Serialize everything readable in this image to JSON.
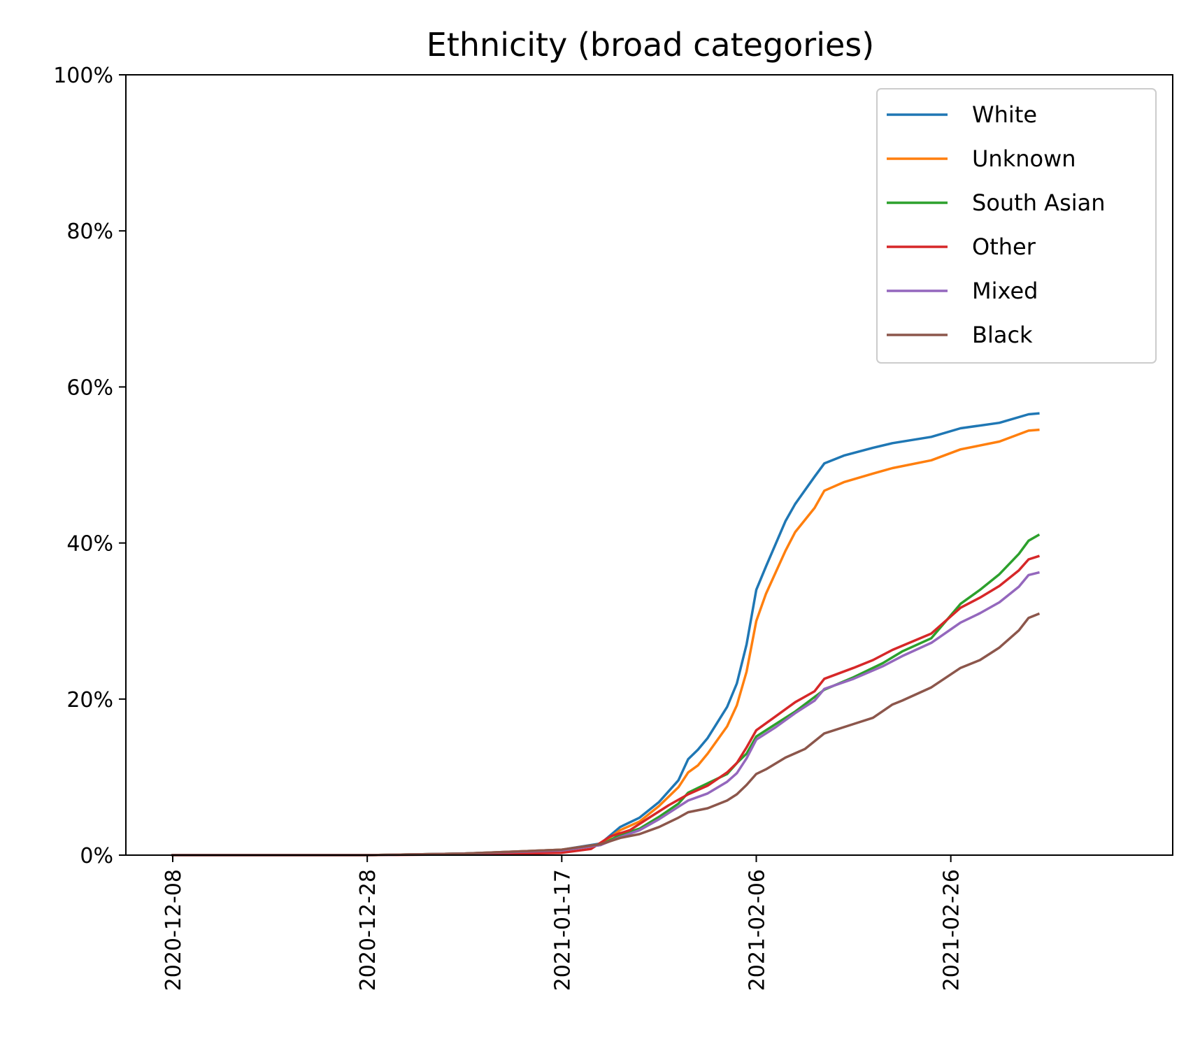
{
  "chart_data": {
    "type": "line",
    "title": "Ethnicity (broad categories)",
    "xlabel": "",
    "ylabel": "",
    "x_range": [
      "2020-12-08",
      "2021-03-16"
    ],
    "x_ticks": [
      "2020-12-08",
      "2020-12-28",
      "2021-01-17",
      "2021-02-06",
      "2021-02-26"
    ],
    "ylim": [
      0,
      100
    ],
    "y_ticks": [
      0,
      20,
      40,
      60,
      80,
      100
    ],
    "y_tick_labels": [
      "0%",
      "20%",
      "40%",
      "60%",
      "80%",
      "100%"
    ],
    "grid": false,
    "legend_position": "top-right",
    "series": [
      {
        "name": "White",
        "color": "#1f77b4",
        "points": [
          [
            "2020-12-08",
            0
          ],
          [
            "2020-12-28",
            0
          ],
          [
            "2021-01-07",
            0.2
          ],
          [
            "2021-01-17",
            0.7
          ],
          [
            "2021-01-21",
            1.5
          ],
          [
            "2021-01-23",
            3.6
          ],
          [
            "2021-01-25",
            4.8
          ],
          [
            "2021-01-27",
            6.8
          ],
          [
            "2021-01-29",
            9.6
          ],
          [
            "2021-01-30",
            12.3
          ],
          [
            "2021-01-31",
            13.5
          ],
          [
            "2021-02-01",
            15.0
          ],
          [
            "2021-02-03",
            19.0
          ],
          [
            "2021-02-04",
            22.0
          ],
          [
            "2021-02-05",
            27.0
          ],
          [
            "2021-02-06",
            34.0
          ],
          [
            "2021-02-07",
            37.0
          ],
          [
            "2021-02-09",
            42.8
          ],
          [
            "2021-02-10",
            45.0
          ],
          [
            "2021-02-12",
            48.5
          ],
          [
            "2021-02-13",
            50.2
          ],
          [
            "2021-02-15",
            51.2
          ],
          [
            "2021-02-18",
            52.2
          ],
          [
            "2021-02-20",
            52.8
          ],
          [
            "2021-02-24",
            53.6
          ],
          [
            "2021-02-27",
            54.7
          ],
          [
            "2021-03-03",
            55.4
          ],
          [
            "2021-03-06",
            56.5
          ],
          [
            "2021-03-07",
            56.6
          ]
        ]
      },
      {
        "name": "Unknown",
        "color": "#ff7f0e",
        "points": [
          [
            "2020-12-08",
            0
          ],
          [
            "2020-12-28",
            0
          ],
          [
            "2021-01-07",
            0.2
          ],
          [
            "2021-01-17",
            0.7
          ],
          [
            "2021-01-21",
            1.4
          ],
          [
            "2021-01-23",
            3.2
          ],
          [
            "2021-01-25",
            4.3
          ],
          [
            "2021-01-27",
            6.3
          ],
          [
            "2021-01-29",
            8.7
          ],
          [
            "2021-01-30",
            10.6
          ],
          [
            "2021-01-31",
            11.5
          ],
          [
            "2021-02-01",
            13.0
          ],
          [
            "2021-02-03",
            16.5
          ],
          [
            "2021-02-04",
            19.2
          ],
          [
            "2021-02-05",
            23.5
          ],
          [
            "2021-02-06",
            30.0
          ],
          [
            "2021-02-07",
            33.5
          ],
          [
            "2021-02-09",
            39.0
          ],
          [
            "2021-02-10",
            41.4
          ],
          [
            "2021-02-12",
            44.5
          ],
          [
            "2021-02-13",
            46.7
          ],
          [
            "2021-02-15",
            47.8
          ],
          [
            "2021-02-18",
            48.9
          ],
          [
            "2021-02-20",
            49.6
          ],
          [
            "2021-02-24",
            50.6
          ],
          [
            "2021-02-27",
            52.0
          ],
          [
            "2021-03-03",
            53.0
          ],
          [
            "2021-03-06",
            54.4
          ],
          [
            "2021-03-07",
            54.5
          ]
        ]
      },
      {
        "name": "South Asian",
        "color": "#2ca02c",
        "points": [
          [
            "2020-12-08",
            0
          ],
          [
            "2020-12-28",
            0
          ],
          [
            "2021-01-07",
            0.2
          ],
          [
            "2021-01-17",
            0.6
          ],
          [
            "2021-01-21",
            1.3
          ],
          [
            "2021-01-23",
            2.6
          ],
          [
            "2021-01-25",
            3.4
          ],
          [
            "2021-01-27",
            4.9
          ],
          [
            "2021-01-29",
            6.6
          ],
          [
            "2021-01-30",
            8.0
          ],
          [
            "2021-01-31",
            8.6
          ],
          [
            "2021-02-01",
            9.2
          ],
          [
            "2021-02-03",
            10.4
          ],
          [
            "2021-02-04",
            11.8
          ],
          [
            "2021-02-05",
            13.0
          ],
          [
            "2021-02-06",
            15.2
          ],
          [
            "2021-02-08",
            16.8
          ],
          [
            "2021-02-10",
            18.4
          ],
          [
            "2021-02-13",
            21.2
          ],
          [
            "2021-02-16",
            22.8
          ],
          [
            "2021-02-19",
            24.6
          ],
          [
            "2021-02-21",
            26.1
          ],
          [
            "2021-02-24",
            27.8
          ],
          [
            "2021-02-27",
            32.2
          ],
          [
            "2021-03-01",
            34.0
          ],
          [
            "2021-03-03",
            36.0
          ],
          [
            "2021-03-05",
            38.6
          ],
          [
            "2021-03-06",
            40.3
          ],
          [
            "2021-03-07",
            41.0
          ]
        ]
      },
      {
        "name": "Other",
        "color": "#d62728",
        "points": [
          [
            "2020-12-08",
            0
          ],
          [
            "2020-12-28",
            0
          ],
          [
            "2021-01-07",
            0.1
          ],
          [
            "2021-01-17",
            0.3
          ],
          [
            "2021-01-20",
            0.8
          ],
          [
            "2021-01-22",
            2.4
          ],
          [
            "2021-01-24",
            3.2
          ],
          [
            "2021-01-26",
            4.8
          ],
          [
            "2021-01-28",
            6.4
          ],
          [
            "2021-01-30",
            7.8
          ],
          [
            "2021-02-01",
            8.9
          ],
          [
            "2021-02-03",
            10.6
          ],
          [
            "2021-02-04",
            11.8
          ],
          [
            "2021-02-05",
            13.8
          ],
          [
            "2021-02-06",
            16.0
          ],
          [
            "2021-02-08",
            17.8
          ],
          [
            "2021-02-10",
            19.6
          ],
          [
            "2021-02-12",
            21.0
          ],
          [
            "2021-02-13",
            22.6
          ],
          [
            "2021-02-16",
            24.0
          ],
          [
            "2021-02-18",
            25.0
          ],
          [
            "2021-02-20",
            26.3
          ],
          [
            "2021-02-24",
            28.4
          ],
          [
            "2021-02-27",
            31.7
          ],
          [
            "2021-03-01",
            33.0
          ],
          [
            "2021-03-03",
            34.5
          ],
          [
            "2021-03-05",
            36.5
          ],
          [
            "2021-03-06",
            37.9
          ],
          [
            "2021-03-07",
            38.3
          ]
        ]
      },
      {
        "name": "Mixed",
        "color": "#9467bd",
        "points": [
          [
            "2020-12-08",
            0
          ],
          [
            "2020-12-28",
            0
          ],
          [
            "2021-01-07",
            0.2
          ],
          [
            "2021-01-17",
            0.6
          ],
          [
            "2021-01-21",
            1.3
          ],
          [
            "2021-01-23",
            2.3
          ],
          [
            "2021-01-25",
            3.2
          ],
          [
            "2021-01-27",
            4.6
          ],
          [
            "2021-01-29",
            6.2
          ],
          [
            "2021-01-30",
            7.0
          ],
          [
            "2021-02-01",
            7.9
          ],
          [
            "2021-02-03",
            9.4
          ],
          [
            "2021-02-04",
            10.5
          ],
          [
            "2021-02-05",
            12.4
          ],
          [
            "2021-02-06",
            14.8
          ],
          [
            "2021-02-08",
            16.4
          ],
          [
            "2021-02-10",
            18.2
          ],
          [
            "2021-02-12",
            19.8
          ],
          [
            "2021-02-13",
            21.3
          ],
          [
            "2021-02-16",
            22.6
          ],
          [
            "2021-02-19",
            24.2
          ],
          [
            "2021-02-21",
            25.5
          ],
          [
            "2021-02-24",
            27.2
          ],
          [
            "2021-02-27",
            29.8
          ],
          [
            "2021-03-01",
            31.0
          ],
          [
            "2021-03-03",
            32.4
          ],
          [
            "2021-03-05",
            34.4
          ],
          [
            "2021-03-06",
            35.9
          ],
          [
            "2021-03-07",
            36.2
          ]
        ]
      },
      {
        "name": "Black",
        "color": "#8c564b",
        "points": [
          [
            "2020-12-08",
            0
          ],
          [
            "2020-12-28",
            0
          ],
          [
            "2021-01-07",
            0.2
          ],
          [
            "2021-01-17",
            0.7
          ],
          [
            "2021-01-21",
            1.4
          ],
          [
            "2021-01-23",
            2.2
          ],
          [
            "2021-01-25",
            2.7
          ],
          [
            "2021-01-27",
            3.6
          ],
          [
            "2021-01-29",
            4.8
          ],
          [
            "2021-01-30",
            5.5
          ],
          [
            "2021-02-01",
            6.0
          ],
          [
            "2021-02-03",
            7.0
          ],
          [
            "2021-02-04",
            7.8
          ],
          [
            "2021-02-05",
            9.0
          ],
          [
            "2021-02-06",
            10.4
          ],
          [
            "2021-02-07",
            11.0
          ],
          [
            "2021-02-09",
            12.5
          ],
          [
            "2021-02-11",
            13.6
          ],
          [
            "2021-02-13",
            15.6
          ],
          [
            "2021-02-16",
            16.8
          ],
          [
            "2021-02-18",
            17.6
          ],
          [
            "2021-02-20",
            19.3
          ],
          [
            "2021-02-21",
            19.8
          ],
          [
            "2021-02-24",
            21.5
          ],
          [
            "2021-02-27",
            24.0
          ],
          [
            "2021-03-01",
            25.0
          ],
          [
            "2021-03-03",
            26.6
          ],
          [
            "2021-03-05",
            28.8
          ],
          [
            "2021-03-06",
            30.4
          ],
          [
            "2021-03-07",
            30.9
          ]
        ]
      }
    ]
  }
}
